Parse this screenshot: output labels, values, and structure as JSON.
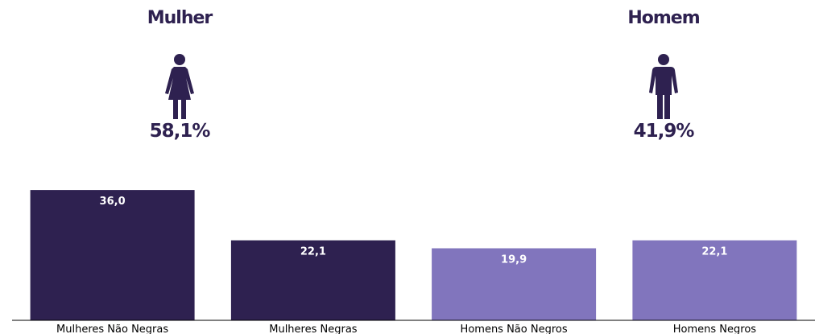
{
  "colors": {
    "dark": "#2e2150",
    "light": "#8175bd",
    "icon": "#2e2150"
  },
  "genders": [
    {
      "title": "Mulher",
      "percent": "58,1%",
      "icon": "woman-icon"
    },
    {
      "title": "Homem",
      "percent": "41,9%",
      "icon": "man-icon"
    }
  ],
  "chart_data": {
    "type": "bar",
    "categories": [
      "Mulheres Não Negras",
      "Mulheres Negras",
      "Homens Não Negros",
      "Homens Negros"
    ],
    "values": [
      36.0,
      22.1,
      19.9,
      22.1
    ],
    "value_labels": [
      "36,0",
      "22,1",
      "19,9",
      "22,1"
    ],
    "bar_colors": [
      "#2e2150",
      "#2e2150",
      "#8175bd",
      "#8175bd"
    ],
    "title": "",
    "xlabel": "",
    "ylabel": "",
    "ylim": [
      0,
      37.8
    ],
    "grid": false,
    "legend": "none"
  }
}
